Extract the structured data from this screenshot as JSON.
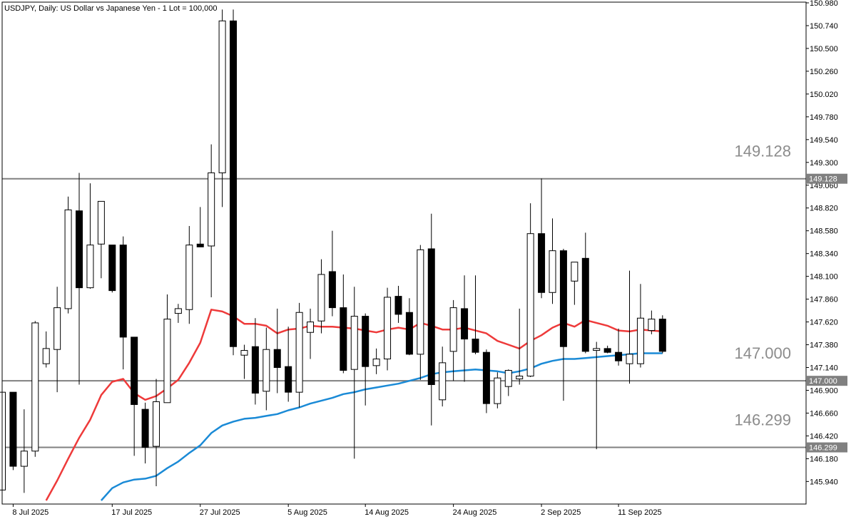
{
  "header": {
    "title": "USDJPY, Daily:  US Dollar vs Japanese Yen - 1 Lot = 100,000"
  },
  "colors": {
    "background": "#ffffff",
    "frame": "#000000",
    "level_line": "#808080",
    "level_text": "#8c8c8c",
    "ma_fast": "#ee3a3a",
    "ma_slow": "#1a8ad6",
    "candle_bull_fill": "#ffffff",
    "candle_bear_fill": "#000000"
  },
  "levels": [
    {
      "value": 149.128,
      "label": "149.128",
      "tag": "149.128"
    },
    {
      "value": 147.0,
      "label": "147.000",
      "tag": "147.000"
    },
    {
      "value": 146.299,
      "label": "146.299",
      "tag": "146.299"
    }
  ],
  "chart_data": {
    "type": "candlestick",
    "symbol": "USDJPY",
    "timeframe": "Daily",
    "ylim": [
      145.74,
      150.98
    ],
    "y_ticks": [
      "150.980",
      "150.740",
      "150.500",
      "150.260",
      "150.020",
      "149.780",
      "149.540",
      "149.300",
      "149.060",
      "148.820",
      "148.580",
      "148.340",
      "148.100",
      "147.860",
      "147.620",
      "147.380",
      "147.140",
      "146.900",
      "146.660",
      "146.420",
      "146.180",
      "145.940"
    ],
    "x_labels": [
      {
        "label": "8 Jul 2025",
        "index": 1
      },
      {
        "label": "17 Jul 2025",
        "index": 10
      },
      {
        "label": "27 Jul 2025",
        "index": 18
      },
      {
        "label": "5 Aug 2025",
        "index": 26
      },
      {
        "label": "14 Aug 2025",
        "index": 33
      },
      {
        "label": "24 Aug 2025",
        "index": 41
      },
      {
        "label": "2 Sep 2025",
        "index": 49
      },
      {
        "label": "11 Sep 2025",
        "index": 56
      }
    ],
    "candles": [
      {
        "o": 145.85,
        "h": 146.88,
        "l": 145.78,
        "c": 146.88
      },
      {
        "o": 146.88,
        "h": 146.88,
        "l": 146.06,
        "c": 146.1
      },
      {
        "o": 146.1,
        "h": 146.7,
        "l": 145.82,
        "c": 146.26
      },
      {
        "o": 146.26,
        "h": 147.63,
        "l": 146.2,
        "c": 147.61
      },
      {
        "o": 147.18,
        "h": 147.52,
        "l": 147.14,
        "c": 147.34
      },
      {
        "o": 147.33,
        "h": 147.99,
        "l": 146.88,
        "c": 147.77
      },
      {
        "o": 147.76,
        "h": 148.94,
        "l": 147.71,
        "c": 148.8
      },
      {
        "o": 148.79,
        "h": 149.19,
        "l": 146.96,
        "c": 147.98
      },
      {
        "o": 147.98,
        "h": 149.08,
        "l": 147.97,
        "c": 148.43
      },
      {
        "o": 148.44,
        "h": 148.84,
        "l": 148.08,
        "c": 148.89
      },
      {
        "o": 148.43,
        "h": 148.43,
        "l": 147.93,
        "c": 147.95
      },
      {
        "o": 148.43,
        "h": 148.52,
        "l": 147.12,
        "c": 147.46
      },
      {
        "o": 147.46,
        "h": 147.46,
        "l": 146.21,
        "c": 146.75
      },
      {
        "o": 146.7,
        "h": 146.77,
        "l": 146.13,
        "c": 146.3
      },
      {
        "o": 146.31,
        "h": 147.02,
        "l": 145.89,
        "c": 146.78
      },
      {
        "o": 146.77,
        "h": 147.91,
        "l": 146.78,
        "c": 147.65
      },
      {
        "o": 147.71,
        "h": 147.81,
        "l": 147.61,
        "c": 147.76
      },
      {
        "o": 147.75,
        "h": 148.63,
        "l": 147.6,
        "c": 148.43
      },
      {
        "o": 148.44,
        "h": 148.83,
        "l": 148.41,
        "c": 148.41
      },
      {
        "o": 148.42,
        "h": 149.49,
        "l": 147.88,
        "c": 149.19
      },
      {
        "o": 149.19,
        "h": 150.91,
        "l": 148.83,
        "c": 150.79
      },
      {
        "o": 150.79,
        "h": 150.91,
        "l": 147.27,
        "c": 147.36
      },
      {
        "o": 147.27,
        "h": 147.38,
        "l": 147.02,
        "c": 147.32
      },
      {
        "o": 147.36,
        "h": 147.66,
        "l": 146.75,
        "c": 146.87
      },
      {
        "o": 146.89,
        "h": 147.56,
        "l": 146.69,
        "c": 147.33
      },
      {
        "o": 147.33,
        "h": 147.76,
        "l": 146.87,
        "c": 147.14
      },
      {
        "o": 147.15,
        "h": 147.57,
        "l": 146.78,
        "c": 146.88
      },
      {
        "o": 146.88,
        "h": 147.82,
        "l": 146.72,
        "c": 147.72
      },
      {
        "o": 147.51,
        "h": 147.76,
        "l": 147.23,
        "c": 147.62
      },
      {
        "o": 147.63,
        "h": 148.28,
        "l": 147.5,
        "c": 148.12
      },
      {
        "o": 148.15,
        "h": 148.58,
        "l": 147.68,
        "c": 147.77
      },
      {
        "o": 147.77,
        "h": 148.12,
        "l": 147.08,
        "c": 147.11
      },
      {
        "o": 147.12,
        "h": 147.99,
        "l": 146.18,
        "c": 147.68
      },
      {
        "o": 147.68,
        "h": 147.71,
        "l": 146.74,
        "c": 147.15
      },
      {
        "o": 147.16,
        "h": 147.34,
        "l": 147.07,
        "c": 147.23
      },
      {
        "o": 147.23,
        "h": 147.98,
        "l": 147.11,
        "c": 147.88
      },
      {
        "o": 147.89,
        "h": 148.0,
        "l": 147.61,
        "c": 147.7
      },
      {
        "o": 147.72,
        "h": 147.87,
        "l": 147.27,
        "c": 147.28
      },
      {
        "o": 147.28,
        "h": 148.43,
        "l": 147.01,
        "c": 148.38
      },
      {
        "o": 148.39,
        "h": 148.76,
        "l": 146.53,
        "c": 146.96
      },
      {
        "o": 146.8,
        "h": 147.36,
        "l": 146.73,
        "c": 147.19
      },
      {
        "o": 147.31,
        "h": 147.85,
        "l": 147.0,
        "c": 147.77
      },
      {
        "o": 147.76,
        "h": 148.11,
        "l": 146.99,
        "c": 147.44
      },
      {
        "o": 147.44,
        "h": 148.11,
        "l": 147.28,
        "c": 147.3
      },
      {
        "o": 147.3,
        "h": 147.33,
        "l": 146.66,
        "c": 146.76
      },
      {
        "o": 146.76,
        "h": 147.09,
        "l": 146.71,
        "c": 147.03
      },
      {
        "o": 146.94,
        "h": 147.12,
        "l": 146.84,
        "c": 147.11
      },
      {
        "o": 147.02,
        "h": 147.76,
        "l": 146.96,
        "c": 147.05
      },
      {
        "o": 147.05,
        "h": 148.87,
        "l": 147.04,
        "c": 148.55
      },
      {
        "o": 148.55,
        "h": 149.13,
        "l": 147.87,
        "c": 147.93
      },
      {
        "o": 147.93,
        "h": 148.71,
        "l": 147.81,
        "c": 148.37
      },
      {
        "o": 148.37,
        "h": 148.39,
        "l": 146.79,
        "c": 147.36
      },
      {
        "o": 148.05,
        "h": 148.24,
        "l": 147.8,
        "c": 148.25
      },
      {
        "o": 148.29,
        "h": 148.56,
        "l": 147.29,
        "c": 147.31
      },
      {
        "o": 147.32,
        "h": 147.41,
        "l": 146.28,
        "c": 147.34
      },
      {
        "o": 147.34,
        "h": 147.37,
        "l": 147.29,
        "c": 147.3
      },
      {
        "o": 147.3,
        "h": 147.55,
        "l": 147.16,
        "c": 147.21
      },
      {
        "o": 147.18,
        "h": 148.16,
        "l": 146.97,
        "c": 147.28
      },
      {
        "o": 147.18,
        "h": 148.02,
        "l": 147.14,
        "c": 147.66
      },
      {
        "o": 147.53,
        "h": 147.74,
        "l": 147.49,
        "c": 147.65
      },
      {
        "o": 147.65,
        "h": 147.69,
        "l": 147.29,
        "c": 147.31
      }
    ],
    "ma_fast": [
      {
        "i": 4,
        "v": 145.74
      },
      {
        "i": 5,
        "v": 145.95
      },
      {
        "i": 6,
        "v": 146.18
      },
      {
        "i": 7,
        "v": 146.4
      },
      {
        "i": 8,
        "v": 146.59
      },
      {
        "i": 9,
        "v": 146.85
      },
      {
        "i": 10,
        "v": 146.99
      },
      {
        "i": 11,
        "v": 147.02
      },
      {
        "i": 12,
        "v": 146.87
      },
      {
        "i": 13,
        "v": 146.8
      },
      {
        "i": 14,
        "v": 146.84
      },
      {
        "i": 15,
        "v": 146.92
      },
      {
        "i": 16,
        "v": 147.01
      },
      {
        "i": 17,
        "v": 147.19
      },
      {
        "i": 18,
        "v": 147.4
      },
      {
        "i": 19,
        "v": 147.75
      },
      {
        "i": 20,
        "v": 147.73
      },
      {
        "i": 21,
        "v": 147.68
      },
      {
        "i": 22,
        "v": 147.6
      },
      {
        "i": 23,
        "v": 147.6
      },
      {
        "i": 24,
        "v": 147.58
      },
      {
        "i": 25,
        "v": 147.5
      },
      {
        "i": 26,
        "v": 147.54
      },
      {
        "i": 27,
        "v": 147.55
      },
      {
        "i": 28,
        "v": 147.58
      },
      {
        "i": 29,
        "v": 147.57
      },
      {
        "i": 30,
        "v": 147.57
      },
      {
        "i": 31,
        "v": 147.56
      },
      {
        "i": 32,
        "v": 147.55
      },
      {
        "i": 33,
        "v": 147.53
      },
      {
        "i": 34,
        "v": 147.51
      },
      {
        "i": 35,
        "v": 147.54
      },
      {
        "i": 36,
        "v": 147.56
      },
      {
        "i": 37,
        "v": 147.54
      },
      {
        "i": 38,
        "v": 147.61
      },
      {
        "i": 39,
        "v": 147.58
      },
      {
        "i": 40,
        "v": 147.54
      },
      {
        "i": 41,
        "v": 147.54
      },
      {
        "i": 42,
        "v": 147.56
      },
      {
        "i": 43,
        "v": 147.53
      },
      {
        "i": 44,
        "v": 147.5
      },
      {
        "i": 45,
        "v": 147.42
      },
      {
        "i": 46,
        "v": 147.38
      },
      {
        "i": 47,
        "v": 147.34
      },
      {
        "i": 48,
        "v": 147.42
      },
      {
        "i": 49,
        "v": 147.48
      },
      {
        "i": 50,
        "v": 147.56
      },
      {
        "i": 51,
        "v": 147.61
      },
      {
        "i": 52,
        "v": 147.57
      },
      {
        "i": 53,
        "v": 147.64
      },
      {
        "i": 54,
        "v": 147.61
      },
      {
        "i": 55,
        "v": 147.58
      },
      {
        "i": 56,
        "v": 147.53
      },
      {
        "i": 57,
        "v": 147.52
      },
      {
        "i": 58,
        "v": 147.54
      },
      {
        "i": 59,
        "v": 147.53
      },
      {
        "i": 60,
        "v": 147.52
      }
    ],
    "ma_slow": [
      {
        "i": 9,
        "v": 145.74
      },
      {
        "i": 10,
        "v": 145.87
      },
      {
        "i": 11,
        "v": 145.93
      },
      {
        "i": 12,
        "v": 145.96
      },
      {
        "i": 13,
        "v": 145.97
      },
      {
        "i": 14,
        "v": 146.0
      },
      {
        "i": 15,
        "v": 146.08
      },
      {
        "i": 16,
        "v": 146.15
      },
      {
        "i": 17,
        "v": 146.24
      },
      {
        "i": 18,
        "v": 146.32
      },
      {
        "i": 19,
        "v": 146.45
      },
      {
        "i": 20,
        "v": 146.53
      },
      {
        "i": 21,
        "v": 146.57
      },
      {
        "i": 22,
        "v": 146.6
      },
      {
        "i": 23,
        "v": 146.61
      },
      {
        "i": 24,
        "v": 146.63
      },
      {
        "i": 25,
        "v": 146.65
      },
      {
        "i": 26,
        "v": 146.69
      },
      {
        "i": 27,
        "v": 146.72
      },
      {
        "i": 28,
        "v": 146.76
      },
      {
        "i": 29,
        "v": 146.79
      },
      {
        "i": 30,
        "v": 146.82
      },
      {
        "i": 31,
        "v": 146.86
      },
      {
        "i": 32,
        "v": 146.88
      },
      {
        "i": 33,
        "v": 146.91
      },
      {
        "i": 34,
        "v": 146.93
      },
      {
        "i": 35,
        "v": 146.95
      },
      {
        "i": 36,
        "v": 146.97
      },
      {
        "i": 37,
        "v": 147.0
      },
      {
        "i": 38,
        "v": 147.03
      },
      {
        "i": 39,
        "v": 147.07
      },
      {
        "i": 40,
        "v": 147.09
      },
      {
        "i": 41,
        "v": 147.1
      },
      {
        "i": 42,
        "v": 147.11
      },
      {
        "i": 43,
        "v": 147.12
      },
      {
        "i": 44,
        "v": 147.11
      },
      {
        "i": 45,
        "v": 147.1
      },
      {
        "i": 46,
        "v": 147.08
      },
      {
        "i": 47,
        "v": 147.1
      },
      {
        "i": 48,
        "v": 147.13
      },
      {
        "i": 49,
        "v": 147.18
      },
      {
        "i": 50,
        "v": 147.21
      },
      {
        "i": 51,
        "v": 147.23
      },
      {
        "i": 52,
        "v": 147.23
      },
      {
        "i": 53,
        "v": 147.24
      },
      {
        "i": 54,
        "v": 147.25
      },
      {
        "i": 55,
        "v": 147.26
      },
      {
        "i": 56,
        "v": 147.27
      },
      {
        "i": 57,
        "v": 147.28
      },
      {
        "i": 58,
        "v": 147.29
      },
      {
        "i": 59,
        "v": 147.29
      },
      {
        "i": 60,
        "v": 147.29
      }
    ]
  }
}
